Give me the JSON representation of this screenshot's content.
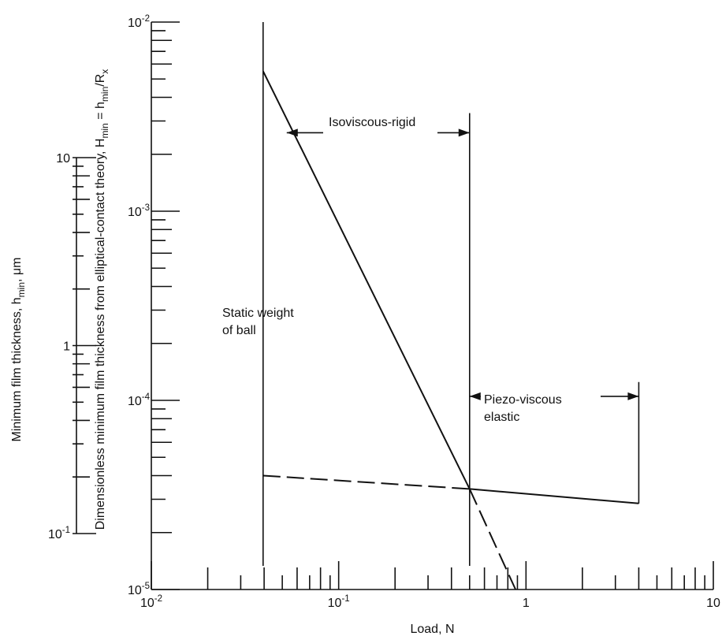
{
  "chart_data": {
    "type": "line",
    "xlabel": "Load, N",
    "x_scale": "log",
    "xlim": [
      0.01,
      10
    ],
    "x_tick_labels": [
      {
        "value": 0.01,
        "base": "10",
        "exp": "-2"
      },
      {
        "value": 0.1,
        "base": "10",
        "exp": "-1"
      },
      {
        "value": 1,
        "text": "1"
      },
      {
        "value": 10,
        "text": "10"
      }
    ],
    "y_axes": [
      {
        "id": "dimensionless",
        "label_parts": [
          "Dimensionless minimum film thickness from elliptical-contact theory, H",
          "min",
          " = h",
          "min",
          "/R",
          "x"
        ],
        "scale": "log",
        "range": [
          1e-05,
          0.01
        ],
        "tick_labels": [
          {
            "value": 0.01,
            "base": "10",
            "exp": "-2"
          },
          {
            "value": 0.001,
            "base": "10",
            "exp": "-3"
          },
          {
            "value": 0.0001,
            "base": "10",
            "exp": "-4"
          },
          {
            "value": 1e-05,
            "base": "10",
            "exp": "-5"
          }
        ]
      },
      {
        "id": "film_thickness",
        "label_parts": [
          "Minimum film thickness, h",
          "min",
          ", μm"
        ],
        "scale": "log",
        "range": [
          0.1,
          10
        ],
        "tick_labels": [
          {
            "value": 10,
            "text": "10"
          },
          {
            "value": 1,
            "text": "1"
          },
          {
            "value": 0.1,
            "base": "10",
            "exp": "-1"
          }
        ]
      }
    ],
    "series": [
      {
        "style": "solid",
        "points": [
          [
            0.0395,
            0.0055
          ],
          [
            0.5,
            3.4e-05
          ]
        ]
      },
      {
        "style": "solid",
        "points": [
          [
            0.5,
            3.4e-05
          ],
          [
            4.0,
            2.85e-05
          ]
        ]
      },
      {
        "style": "dashed",
        "points": [
          [
            0.0395,
            4e-05
          ],
          [
            0.5,
            3.4e-05
          ]
        ]
      },
      {
        "style": "dashed",
        "points": [
          [
            0.5,
            3.4e-05
          ],
          [
            0.88,
            1e-05
          ]
        ]
      }
    ],
    "vertical_lines": [
      {
        "x": 0.0395,
        "y_top": 0.01,
        "label": "static-weight"
      },
      {
        "x": 0.5,
        "y_top": 0.0033
      },
      {
        "x": 4.0,
        "y_top": 0.000125,
        "y_bottom": 2.85e-05
      }
    ],
    "annotations": {
      "static_weight": {
        "lines": [
          "Static weight",
          "of ball"
        ],
        "x": 0.0395
      },
      "isoviscous_rigid": {
        "text": "Isoviscous-rigid",
        "x_range": [
          0.0395,
          0.5
        ],
        "y": 0.0026
      },
      "piezo_viscous_elastic": {
        "lines": [
          "Piezo-viscous",
          "elastic"
        ],
        "x_range": [
          0.5,
          4.0
        ],
        "y": 0.000105
      }
    }
  }
}
